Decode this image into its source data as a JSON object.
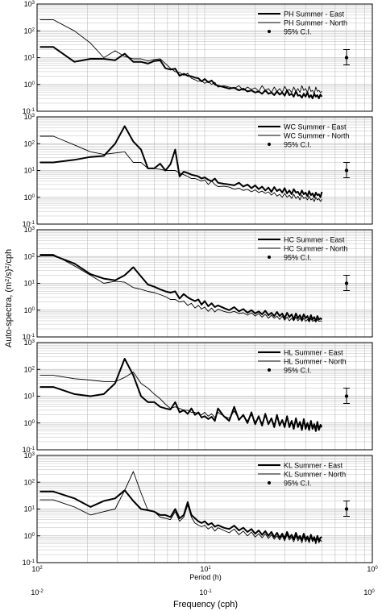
{
  "figure": {
    "ylabel": "Auto-spectra, (m²/s)²/cph",
    "ylabel_main": "Auto-spectra, (m",
    "ylabel_sup1": "2",
    "ylabel_mid": "/s)",
    "ylabel_sup2": "2",
    "ylabel_end": "/cph",
    "top_axis_label": "Period (h)",
    "bottom_axis_label": "Frequency (cph)",
    "top_tick_labels": [
      {
        "base": "10",
        "exp": "2"
      },
      {
        "base": "10",
        "exp": "1"
      },
      {
        "base": "10",
        "exp": "0"
      }
    ],
    "bottom_tick_labels": [
      {
        "base": "10",
        "exp": "-2"
      },
      {
        "base": "10",
        "exp": "-1"
      },
      {
        "base": "10",
        "exp": "0"
      }
    ],
    "y_tick_labels": [
      {
        "base": "10",
        "exp": "-1"
      },
      {
        "base": "10",
        "exp": "0"
      },
      {
        "base": "10",
        "exp": "1"
      },
      {
        "base": "10",
        "exp": "2"
      },
      {
        "base": "10",
        "exp": "3"
      }
    ],
    "ci_label": "95% C.I.",
    "colors": {
      "line": "#000000",
      "grid": "#bfbfbf",
      "frame": "#000000"
    }
  },
  "chart_data": [
    {
      "type": "line",
      "xscale": "log",
      "yscale": "log",
      "xlim": [
        0.01,
        1
      ],
      "ylim": [
        0.1,
        1000
      ],
      "grid": true,
      "legend_position": "top-right",
      "x": [
        0.0104,
        0.0125,
        0.0167,
        0.0208,
        0.025,
        0.0292,
        0.0333,
        0.0375,
        0.0417,
        0.0458,
        0.05,
        0.0542,
        0.0583,
        0.0625,
        0.0667,
        0.0708,
        0.075,
        0.0792,
        0.0833,
        0.0875,
        0.0917,
        0.0958,
        0.1,
        0.105,
        0.11,
        0.115,
        0.12,
        0.13,
        0.14,
        0.15,
        0.16,
        0.17,
        0.18,
        0.19,
        0.2,
        0.21,
        0.22,
        0.23,
        0.24,
        0.25,
        0.26,
        0.27,
        0.28,
        0.29,
        0.3,
        0.31,
        0.32,
        0.33,
        0.34,
        0.35,
        0.36,
        0.37,
        0.38,
        0.39,
        0.4,
        0.41,
        0.42,
        0.43,
        0.44,
        0.45,
        0.46,
        0.47,
        0.48,
        0.49,
        0.5
      ],
      "series": [
        {
          "name": "PH Summer - East",
          "width": "thick",
          "values": [
            25,
            25,
            7,
            9,
            9,
            8,
            14,
            7,
            7,
            6,
            7.5,
            8,
            4,
            3.6,
            3.9,
            2.1,
            2.5,
            2.1,
            2.0,
            1.8,
            1.7,
            1.3,
            1.6,
            1.2,
            1.4,
            1.0,
            0.9,
            0.8,
            0.7,
            0.75,
            0.6,
            0.7,
            0.55,
            0.6,
            0.5,
            0.55,
            0.45,
            0.6,
            0.45,
            0.5,
            0.4,
            0.55,
            0.42,
            0.5,
            0.38,
            0.6,
            0.4,
            0.45,
            0.35,
            0.55,
            0.38,
            0.4,
            0.32,
            0.45,
            0.35,
            0.5,
            0.33,
            0.4,
            0.3,
            0.45,
            0.35,
            0.4,
            0.3,
            0.42,
            0.35
          ]
        },
        {
          "name": "PH Summer - North",
          "width": "thin",
          "values": [
            260,
            260,
            100,
            35,
            10,
            18,
            11,
            9,
            9,
            7.5,
            8.5,
            9,
            6,
            4,
            3,
            2.8,
            2.2,
            2.6,
            1.7,
            1.5,
            1.3,
            1.4,
            1.1,
            1.3,
            1.0,
            1.2,
            0.8,
            0.9,
            0.8,
            0.7,
            0.9,
            0.6,
            0.8,
            0.65,
            0.75,
            0.55,
            0.9,
            0.6,
            0.7,
            0.5,
            0.8,
            0.55,
            0.7,
            0.5,
            0.85,
            0.6,
            0.65,
            0.5,
            0.8,
            0.55,
            0.7,
            0.5,
            0.9,
            0.6,
            0.7,
            0.5,
            0.85,
            0.55,
            0.6,
            0.45,
            0.8,
            0.55,
            0.6,
            0.5,
            0.55
          ]
        }
      ]
    },
    {
      "type": "line",
      "xscale": "log",
      "yscale": "log",
      "xlim": [
        0.01,
        1
      ],
      "ylim": [
        0.1,
        1000
      ],
      "grid": true,
      "legend_position": "top-right",
      "x": [
        0.0104,
        0.0125,
        0.0167,
        0.0208,
        0.025,
        0.0292,
        0.0333,
        0.0375,
        0.0417,
        0.0458,
        0.05,
        0.0542,
        0.0583,
        0.0625,
        0.0667,
        0.0708,
        0.075,
        0.0792,
        0.0833,
        0.0875,
        0.0917,
        0.0958,
        0.1,
        0.105,
        0.11,
        0.115,
        0.12,
        0.13,
        0.14,
        0.15,
        0.16,
        0.17,
        0.18,
        0.19,
        0.2,
        0.21,
        0.22,
        0.23,
        0.24,
        0.25,
        0.26,
        0.27,
        0.28,
        0.29,
        0.3,
        0.31,
        0.32,
        0.33,
        0.34,
        0.35,
        0.36,
        0.37,
        0.38,
        0.39,
        0.4,
        0.41,
        0.42,
        0.43,
        0.44,
        0.45,
        0.46,
        0.47,
        0.48,
        0.49,
        0.5
      ],
      "series": [
        {
          "name": "WC Summer - East",
          "width": "thick",
          "values": [
            20,
            20,
            25,
            32,
            35,
            100,
            450,
            120,
            60,
            12,
            12,
            18,
            10,
            17,
            60,
            6,
            9,
            8,
            7,
            6.5,
            6,
            5,
            5.5,
            4.5,
            4,
            5,
            3.5,
            3.2,
            3,
            2.8,
            3.5,
            2.5,
            3,
            2.2,
            2.8,
            2.0,
            2.5,
            1.8,
            2.3,
            1.6,
            2.4,
            1.7,
            2.0,
            1.5,
            2.2,
            1.4,
            1.8,
            1.3,
            2.0,
            1.5,
            1.6,
            1.2,
            1.8,
            1.3,
            1.5,
            1.1,
            1.7,
            1.2,
            1.4,
            1.0,
            1.5,
            1.2,
            1.3,
            1.0,
            1.6
          ]
        },
        {
          "name": "WC Summer - North",
          "width": "thin",
          "values": [
            190,
            190,
            90,
            50,
            40,
            45,
            50,
            20,
            20,
            12,
            12,
            11,
            10,
            10,
            10,
            8,
            7,
            6,
            5,
            5,
            4.5,
            4,
            4.5,
            3,
            4,
            3,
            2.5,
            2.6,
            2.4,
            2,
            2.2,
            1.8,
            2,
            1.6,
            1.9,
            1.5,
            1.7,
            1.4,
            1.6,
            1.2,
            1.5,
            1.1,
            1.3,
            1.0,
            1.4,
            1.0,
            1.2,
            0.9,
            1.3,
            0.9,
            1.1,
            0.8,
            1.2,
            0.9,
            1.0,
            0.8,
            1.1,
            0.8,
            0.9,
            0.7,
            1.0,
            0.8,
            0.9,
            0.7,
            0.85
          ]
        }
      ]
    },
    {
      "type": "line",
      "xscale": "log",
      "yscale": "log",
      "xlim": [
        0.01,
        1
      ],
      "ylim": [
        0.1,
        1000
      ],
      "grid": true,
      "legend_position": "top-right",
      "x": [
        0.0104,
        0.0125,
        0.0167,
        0.0208,
        0.025,
        0.0292,
        0.0333,
        0.0375,
        0.0417,
        0.0458,
        0.05,
        0.0542,
        0.0583,
        0.0625,
        0.0667,
        0.0708,
        0.075,
        0.0792,
        0.0833,
        0.0875,
        0.0917,
        0.0958,
        0.1,
        0.105,
        0.11,
        0.115,
        0.12,
        0.13,
        0.14,
        0.15,
        0.16,
        0.17,
        0.18,
        0.19,
        0.2,
        0.21,
        0.22,
        0.23,
        0.24,
        0.25,
        0.26,
        0.27,
        0.28,
        0.29,
        0.3,
        0.31,
        0.32,
        0.33,
        0.34,
        0.35,
        0.36,
        0.37,
        0.38,
        0.39,
        0.4,
        0.41,
        0.42,
        0.43,
        0.44,
        0.45,
        0.46,
        0.47,
        0.48,
        0.49,
        0.5
      ],
      "series": [
        {
          "name": "HC Summer - East",
          "width": "thick",
          "values": [
            110,
            110,
            55,
            22,
            15,
            13,
            20,
            40,
            18,
            9,
            7.5,
            6,
            5,
            4.5,
            5,
            2.7,
            4,
            3,
            2.5,
            2.2,
            2.5,
            1.6,
            2.2,
            1.4,
            1.8,
            1.3,
            1.5,
            1.2,
            1.0,
            1.3,
            0.9,
            1.1,
            0.8,
            1.0,
            0.75,
            0.9,
            0.7,
            0.95,
            0.65,
            0.8,
            0.6,
            0.85,
            0.6,
            0.75,
            0.5,
            0.8,
            0.55,
            0.7,
            0.45,
            0.75,
            0.5,
            0.65,
            0.45,
            0.7,
            0.5,
            0.6,
            0.42,
            0.65,
            0.45,
            0.55,
            0.4,
            0.6,
            0.45,
            0.5,
            0.45
          ]
        },
        {
          "name": "HC Summer - North",
          "width": "thin",
          "values": [
            120,
            120,
            45,
            20,
            10,
            12,
            11,
            7,
            6,
            5,
            4.5,
            3.8,
            3.2,
            2.5,
            2.5,
            2.0,
            2.2,
            1.5,
            1.8,
            1.2,
            1.5,
            1.1,
            1.3,
            0.9,
            1.2,
            0.85,
            1.1,
            0.9,
            0.8,
            0.9,
            0.75,
            0.8,
            0.65,
            0.8,
            0.6,
            0.75,
            0.55,
            0.7,
            0.5,
            0.65,
            0.5,
            0.6,
            0.45,
            0.6,
            0.42,
            0.55,
            0.4,
            0.5,
            0.4,
            0.55,
            0.4,
            0.5,
            0.38,
            0.5,
            0.38,
            0.45,
            0.36,
            0.48,
            0.38,
            0.42,
            0.36,
            0.45,
            0.38,
            0.4,
            0.38
          ]
        }
      ]
    },
    {
      "type": "line",
      "xscale": "log",
      "yscale": "log",
      "xlim": [
        0.01,
        1
      ],
      "ylim": [
        0.1,
        1000
      ],
      "grid": true,
      "legend_position": "top-right",
      "x": [
        0.0104,
        0.0125,
        0.0167,
        0.0208,
        0.025,
        0.0292,
        0.0333,
        0.0375,
        0.0417,
        0.0458,
        0.05,
        0.0542,
        0.0583,
        0.0625,
        0.0667,
        0.0708,
        0.075,
        0.0792,
        0.0833,
        0.0875,
        0.0917,
        0.0958,
        0.1,
        0.105,
        0.11,
        0.115,
        0.12,
        0.13,
        0.14,
        0.15,
        0.16,
        0.17,
        0.18,
        0.19,
        0.2,
        0.21,
        0.22,
        0.23,
        0.24,
        0.25,
        0.26,
        0.27,
        0.28,
        0.29,
        0.3,
        0.31,
        0.32,
        0.33,
        0.34,
        0.35,
        0.36,
        0.37,
        0.38,
        0.39,
        0.4,
        0.41,
        0.42,
        0.43,
        0.44,
        0.45,
        0.46,
        0.47,
        0.48,
        0.49,
        0.5
      ],
      "series": [
        {
          "name": "HL Summer - East",
          "width": "thick",
          "values": [
            22,
            22,
            12,
            10,
            12,
            30,
            250,
            60,
            10,
            6,
            6,
            4,
            3.5,
            3.2,
            6,
            2.5,
            3,
            2.2,
            3.5,
            2.0,
            2.5,
            1.6,
            1.8,
            1.4,
            1.7,
            1.2,
            3.5,
            1.8,
            1.2,
            4.0,
            1.3,
            2.0,
            1.0,
            2.5,
            0.9,
            1.8,
            0.8,
            2.2,
            0.9,
            1.5,
            0.7,
            2.0,
            0.8,
            1.3,
            0.7,
            1.8,
            0.7,
            1.2,
            0.6,
            1.5,
            0.7,
            1.1,
            0.55,
            1.4,
            0.6,
            1.0,
            0.55,
            1.2,
            0.6,
            0.9,
            0.5,
            1.1,
            0.55,
            0.8,
            0.7
          ]
        },
        {
          "name": "HL Summer - North",
          "width": "thin",
          "values": [
            60,
            60,
            45,
            40,
            35,
            35,
            50,
            80,
            30,
            20,
            12,
            8,
            5,
            3.5,
            4,
            3.5,
            3,
            3,
            2.5,
            2.5,
            2.2,
            2.0,
            2.5,
            1.8,
            2.2,
            1.6,
            2.5,
            1.8,
            1.5,
            2.8,
            1.4,
            1.8,
            1.2,
            2.0,
            1.1,
            1.6,
            1.0,
            1.8,
            1.0,
            1.4,
            0.9,
            1.6,
            0.9,
            1.3,
            0.85,
            1.5,
            0.85,
            1.2,
            0.8,
            1.4,
            0.8,
            1.1,
            0.75,
            1.3,
            0.8,
            1.0,
            0.75,
            1.2,
            0.75,
            0.95,
            0.7,
            1.1,
            0.7,
            0.9,
            0.8
          ]
        }
      ]
    },
    {
      "type": "line",
      "xscale": "log",
      "yscale": "log",
      "xlim": [
        0.01,
        1
      ],
      "ylim": [
        0.1,
        1000
      ],
      "grid": true,
      "legend_position": "top-right",
      "x": [
        0.0104,
        0.0125,
        0.0167,
        0.0208,
        0.025,
        0.0292,
        0.0333,
        0.0375,
        0.0417,
        0.0458,
        0.05,
        0.0542,
        0.0583,
        0.0625,
        0.0667,
        0.0708,
        0.075,
        0.0792,
        0.0833,
        0.0875,
        0.0917,
        0.0958,
        0.1,
        0.105,
        0.11,
        0.115,
        0.12,
        0.13,
        0.14,
        0.15,
        0.16,
        0.17,
        0.18,
        0.19,
        0.2,
        0.21,
        0.22,
        0.23,
        0.24,
        0.25,
        0.26,
        0.27,
        0.28,
        0.29,
        0.3,
        0.31,
        0.32,
        0.33,
        0.34,
        0.35,
        0.36,
        0.37,
        0.38,
        0.39,
        0.4,
        0.41,
        0.42,
        0.43,
        0.44,
        0.45,
        0.46,
        0.47,
        0.48,
        0.49,
        0.5
      ],
      "series": [
        {
          "name": "KL Summer - East",
          "width": "thick",
          "values": [
            45,
            45,
            25,
            12,
            20,
            25,
            50,
            20,
            10,
            9,
            8,
            6,
            6,
            5,
            10,
            4.5,
            6,
            18,
            6,
            4.5,
            3.5,
            3,
            3.5,
            2.6,
            3,
            2.2,
            2.5,
            2.0,
            1.8,
            2.4,
            1.6,
            2.0,
            1.4,
            1.8,
            1.2,
            1.6,
            1.1,
            1.5,
            1.0,
            1.4,
            0.9,
            1.3,
            0.85,
            1.2,
            0.8,
            1.4,
            0.85,
            1.1,
            0.75,
            1.3,
            0.8,
            1.0,
            0.7,
            1.2,
            0.75,
            0.95,
            0.65,
            1.1,
            0.7,
            0.9,
            0.6,
            1.0,
            0.65,
            0.85,
            0.9
          ]
        },
        {
          "name": "KL Summer - North",
          "width": "thin",
          "values": [
            22,
            22,
            12,
            6,
            8,
            10,
            50,
            250,
            40,
            9,
            8,
            5,
            4.5,
            4,
            8,
            3.5,
            5,
            14,
            5,
            3,
            2.5,
            2.2,
            2.5,
            1.8,
            2.2,
            1.5,
            2.0,
            1.6,
            1.3,
            1.8,
            1.1,
            1.5,
            1.0,
            1.4,
            0.9,
            1.2,
            0.85,
            1.2,
            0.8,
            1.1,
            0.75,
            1.0,
            0.7,
            1.0,
            0.65,
            1.1,
            0.7,
            0.9,
            0.6,
            1.0,
            0.65,
            0.85,
            0.55,
            0.95,
            0.6,
            0.8,
            0.55,
            0.9,
            0.6,
            0.75,
            0.5,
            0.85,
            0.55,
            0.7,
            0.6
          ]
        }
      ]
    }
  ]
}
